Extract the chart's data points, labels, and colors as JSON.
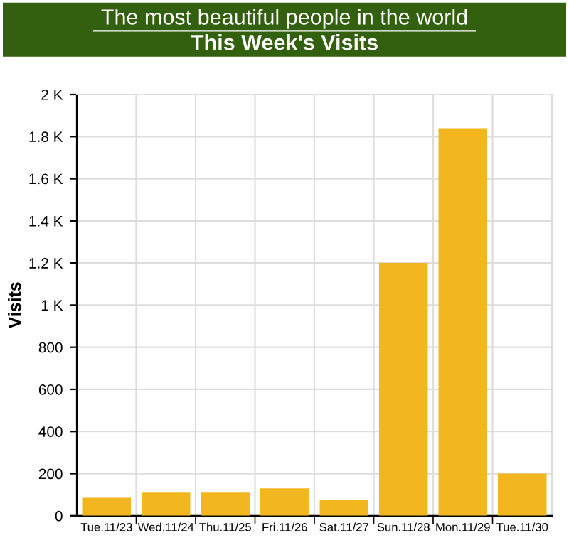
{
  "chart_data": {
    "type": "bar",
    "title": "The most beautiful people in the world",
    "subtitle": "This Week's Visits",
    "ylabel": "Visits",
    "categories": [
      "Tue.11/23",
      "Wed.11/24",
      "Thu.11/25",
      "Fri.11/26",
      "Sat.11/27",
      "Sun.11/28",
      "Mon.11/29",
      "Tue.11/30"
    ],
    "values": [
      85,
      110,
      110,
      130,
      75,
      1200,
      1840,
      200
    ],
    "color": "#f2b61f",
    "ylim": [
      0,
      2000
    ],
    "yticks": [
      0,
      200,
      400,
      600,
      800,
      {
        "value": 1000,
        "label": "1 K"
      },
      {
        "value": 1200,
        "label": "1.2 K"
      },
      {
        "value": 1400,
        "label": "1.4 K"
      },
      {
        "value": 1600,
        "label": "1.6 K"
      },
      {
        "value": 1800,
        "label": "1.8 K"
      },
      {
        "value": 2000,
        "label": "2 K"
      }
    ],
    "grid": true,
    "legend": false
  }
}
